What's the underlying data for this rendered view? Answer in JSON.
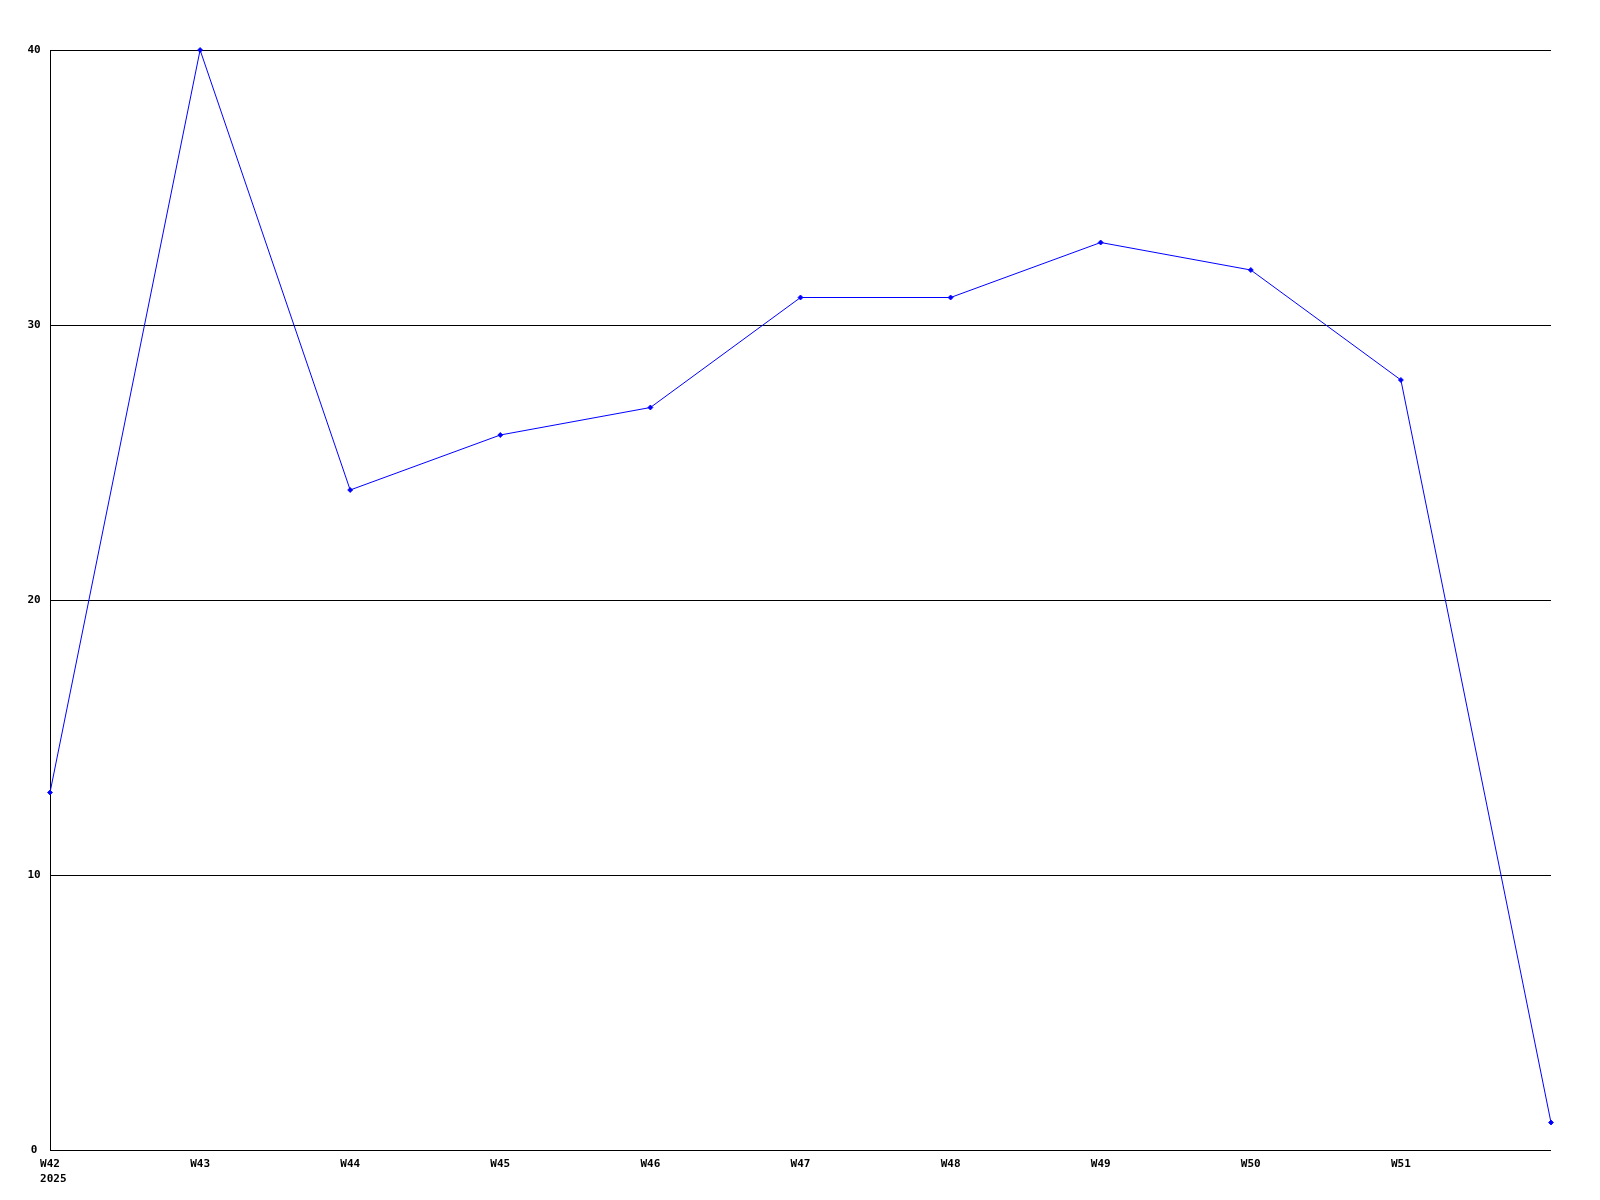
{
  "chart_data": {
    "type": "line",
    "categories": [
      "W42\n2025",
      "W43",
      "W44",
      "W45",
      "W46",
      "W47",
      "W48",
      "W49",
      "W50",
      "W51",
      null
    ],
    "series": [
      {
        "color": "#0000ff",
        "values": [
          13,
          40,
          24,
          26,
          27,
          31,
          31,
          33,
          32,
          28,
          1
        ]
      }
    ],
    "ylim": [
      0,
      40
    ],
    "yticks": [
      0,
      10,
      20,
      30,
      40
    ],
    "grid": "y",
    "marker": "diamond"
  }
}
